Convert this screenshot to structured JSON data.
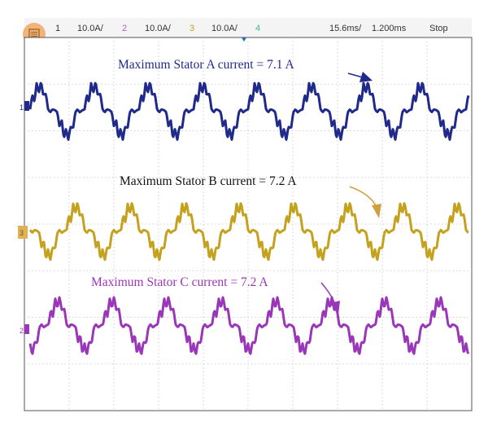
{
  "header": {
    "menu_icon": "menu-icon",
    "ch1_num": "1",
    "ch1_scale": "10.0A/",
    "ch2_num": "2",
    "ch2_scale": "10.0A/",
    "ch3_num": "3",
    "ch3_scale": "10.0A/",
    "ch4_num": "4",
    "timebase": "15.6ms/",
    "delay": "1.200ms",
    "run_state": "Stop"
  },
  "colors": {
    "ch1": "#1f2a8a",
    "ch2": "#c4a21e",
    "ch3": "#9a37b8",
    "ch4": "#3bbf8a",
    "grid": "#b8b8b8",
    "menu_button": "#f2b37a",
    "frame": "#555555",
    "header_bg": "#f4f4f4"
  },
  "chart_data": {
    "type": "line",
    "title": "",
    "xlabel": "",
    "ylabel": "",
    "grid": true,
    "series": [
      {
        "channel": "1",
        "marker": "1",
        "name": "Stator A current",
        "annotation": "Maximum Stator A current = 7.1 A",
        "peak_A": 7.1,
        "color": "#1f2a8a"
      },
      {
        "channel": "3",
        "marker": "3",
        "name": "Stator B current",
        "annotation": "Maximum Stator B current = 7.2 A",
        "peak_A": 7.2,
        "color": "#c4a21e"
      },
      {
        "channel": "2",
        "marker": "2",
        "name": "Stator C current",
        "annotation": "Maximum Stator C current = 7.2 A",
        "peak_A": 7.2,
        "color": "#9a37b8"
      }
    ]
  }
}
